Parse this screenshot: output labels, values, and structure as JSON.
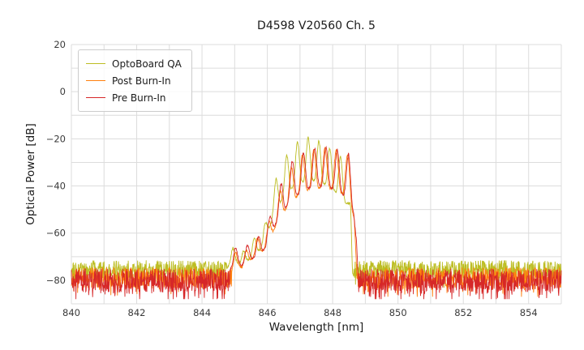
{
  "chart_data": {
    "type": "line",
    "title": "D4598 V20560 Ch. 5",
    "xlabel": "Wavelength [nm]",
    "ylabel": "Optical Power [dB]",
    "xlim": [
      840,
      855
    ],
    "ylim": [
      -90,
      20
    ],
    "xticks": [
      840,
      842,
      844,
      846,
      848,
      850,
      852,
      854
    ],
    "yticks": [
      20,
      0,
      -20,
      -40,
      -60,
      -80
    ],
    "x_grid_step_nm": 1,
    "y_grid_step_db": 10,
    "grid": true,
    "grid_color": "#dcdcdc",
    "sample_step_nm": 0.01,
    "legend": {
      "position": "upper left",
      "entries": [
        "OptoBoard QA",
        "Post Burn-In",
        "Pre Burn-In"
      ]
    },
    "series": [
      {
        "name": "OptoBoard QA",
        "slug": "optoboard-qa",
        "color": "#bcbd22",
        "seed": 101,
        "noise": {
          "floor_db": -75.5,
          "amplitude_db": 4.0,
          "spike_prob": 0.1,
          "spike_db": 6,
          "min_db": -85
        },
        "signal": {
          "start_nm": 844.75,
          "end_nm": 848.6,
          "mode_center_nm": 847.25,
          "mode_spacing_nm": 0.33,
          "envelope_high": [
            [
              844.75,
              -73
            ],
            [
              844.95,
              -66
            ],
            [
              845.15,
              -69
            ],
            [
              845.35,
              -67
            ],
            [
              845.6,
              -62
            ],
            [
              845.85,
              -59
            ],
            [
              846.0,
              -53
            ],
            [
              846.26,
              -37
            ],
            [
              846.59,
              -27
            ],
            [
              846.92,
              -21.5
            ],
            [
              847.25,
              -19.5
            ],
            [
              847.58,
              -21
            ],
            [
              847.91,
              -24
            ],
            [
              848.24,
              -27.5
            ],
            [
              848.45,
              -31
            ],
            [
              848.55,
              -48
            ],
            [
              848.6,
              -74
            ]
          ],
          "envelope_low": [
            [
              844.75,
              -75
            ],
            [
              844.95,
              -71
            ],
            [
              845.15,
              -73
            ],
            [
              845.35,
              -72
            ],
            [
              845.6,
              -69
            ],
            [
              845.85,
              -66
            ],
            [
              846.0,
              -60
            ],
            [
              846.26,
              -50
            ],
            [
              846.59,
              -43
            ],
            [
              846.92,
              -39
            ],
            [
              847.25,
              -37
            ],
            [
              847.58,
              -38
            ],
            [
              847.91,
              -40.5
            ],
            [
              848.24,
              -44
            ],
            [
              848.45,
              -48
            ],
            [
              848.55,
              -60
            ],
            [
              848.6,
              -76
            ]
          ]
        }
      },
      {
        "name": "Post Burn-In",
        "slug": "post-burn-in",
        "color": "#ff7f0e",
        "seed": 202,
        "noise": {
          "floor_db": -79,
          "amplitude_db": 4.5,
          "spike_prob": 0.15,
          "spike_db": 6,
          "min_db": -87
        },
        "signal": {
          "start_nm": 844.9,
          "end_nm": 848.74,
          "mode_center_nm": 847.42,
          "mode_spacing_nm": 0.345,
          "envelope_high": [
            [
              844.9,
              -74
            ],
            [
              845.05,
              -67
            ],
            [
              845.25,
              -69.5
            ],
            [
              845.5,
              -64
            ],
            [
              845.75,
              -61.5
            ],
            [
              846.0,
              -57
            ],
            [
              846.15,
              -51
            ],
            [
              846.45,
              -40
            ],
            [
              846.8,
              -30
            ],
            [
              847.1,
              -26.5
            ],
            [
              847.42,
              -24.5
            ],
            [
              847.8,
              -24
            ],
            [
              848.15,
              -25
            ],
            [
              848.5,
              -27
            ],
            [
              848.66,
              -36
            ],
            [
              848.74,
              -78
            ]
          ],
          "envelope_low": [
            [
              844.9,
              -77
            ],
            [
              845.05,
              -73
            ],
            [
              845.25,
              -75
            ],
            [
              845.5,
              -71
            ],
            [
              845.75,
              -69.5
            ],
            [
              846.0,
              -65
            ],
            [
              846.15,
              -60
            ],
            [
              846.45,
              -52
            ],
            [
              846.8,
              -45.5
            ],
            [
              847.1,
              -42.5
            ],
            [
              847.42,
              -41
            ],
            [
              847.8,
              -40.5
            ],
            [
              848.15,
              -42
            ],
            [
              848.5,
              -45
            ],
            [
              848.66,
              -54
            ],
            [
              848.74,
              -80
            ]
          ]
        }
      },
      {
        "name": "Pre Burn-In",
        "slug": "pre-burn-in",
        "color": "#d62728",
        "seed": 303,
        "noise": {
          "floor_db": -80,
          "amplitude_db": 5.0,
          "spike_prob": 0.2,
          "spike_db": 7,
          "min_db": -88
        },
        "signal": {
          "start_nm": 844.85,
          "end_nm": 848.78,
          "mode_center_nm": 847.45,
          "mode_spacing_nm": 0.345,
          "envelope_high": [
            [
              844.85,
              -72
            ],
            [
              845.0,
              -66
            ],
            [
              845.2,
              -69
            ],
            [
              845.45,
              -64
            ],
            [
              845.7,
              -62
            ],
            [
              845.95,
              -58
            ],
            [
              846.1,
              -52
            ],
            [
              846.42,
              -39
            ],
            [
              846.76,
              -29.5
            ],
            [
              847.1,
              -26
            ],
            [
              847.45,
              -24
            ],
            [
              847.8,
              -23.5
            ],
            [
              848.14,
              -24.5
            ],
            [
              848.49,
              -26.5
            ],
            [
              848.65,
              -35
            ],
            [
              848.73,
              -55
            ],
            [
              848.78,
              -80
            ]
          ],
          "envelope_low": [
            [
              844.85,
              -76
            ],
            [
              845.0,
              -72
            ],
            [
              845.2,
              -74
            ],
            [
              845.45,
              -71
            ],
            [
              845.7,
              -70
            ],
            [
              845.95,
              -66
            ],
            [
              846.1,
              -60
            ],
            [
              846.42,
              -52
            ],
            [
              846.76,
              -45
            ],
            [
              847.1,
              -42
            ],
            [
              847.45,
              -40
            ],
            [
              847.8,
              -40
            ],
            [
              848.14,
              -42
            ],
            [
              848.49,
              -45
            ],
            [
              848.65,
              -52
            ],
            [
              848.73,
              -65
            ],
            [
              848.78,
              -81
            ]
          ]
        }
      }
    ]
  },
  "figure": {
    "background": "#ffffff"
  }
}
